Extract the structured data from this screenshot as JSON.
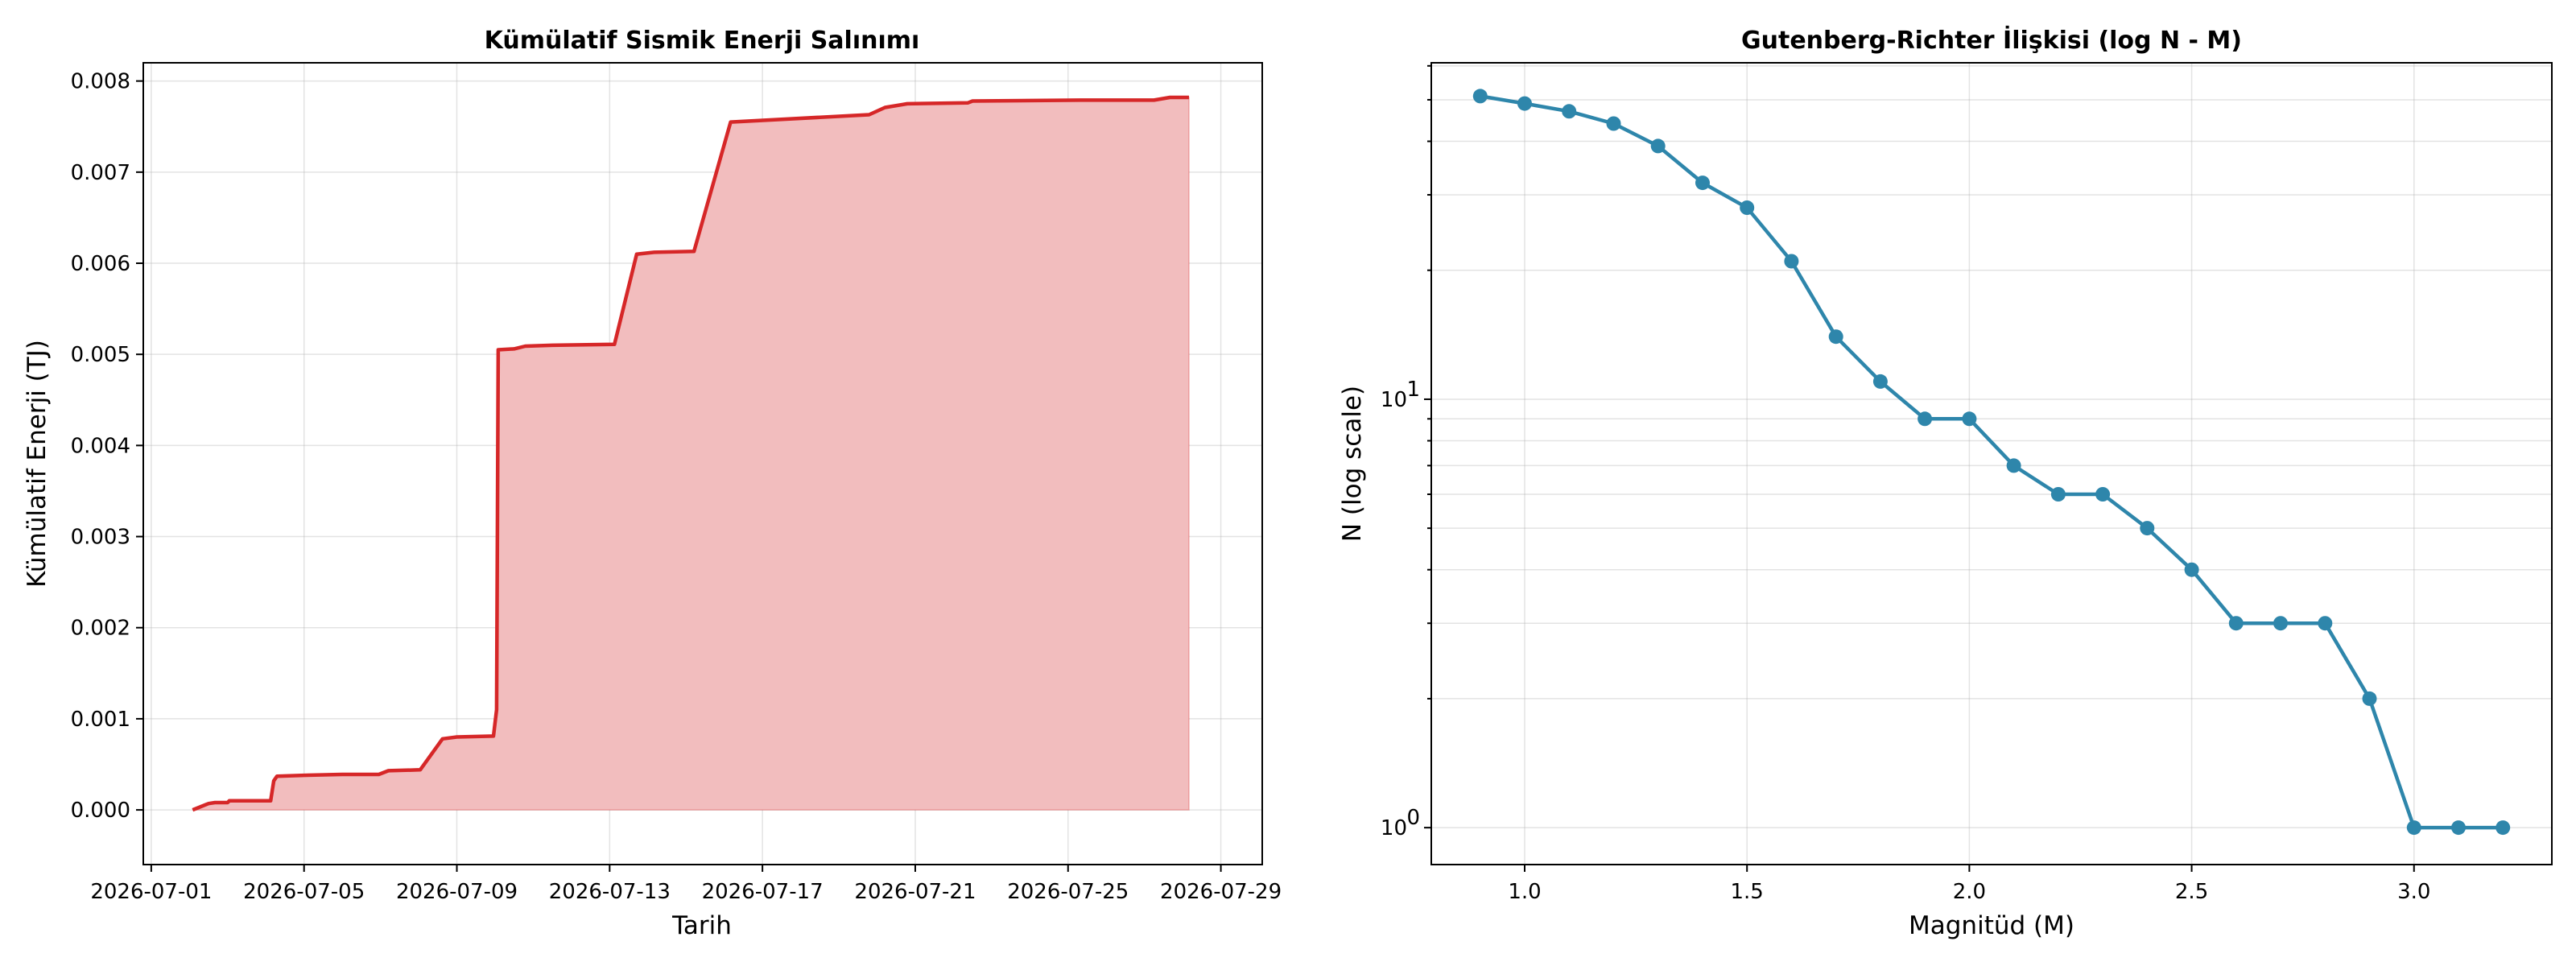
{
  "chart_data": [
    {
      "type": "area",
      "title": "Kümülatif Sismik Enerji Salınımı",
      "xlabel": "Tarih",
      "ylabel": "Kümülatif Enerji (TJ)",
      "x_ticks": [
        "2026-07-01",
        "2026-07-05",
        "2026-07-09",
        "2026-07-13",
        "2026-07-17",
        "2026-07-21",
        "2026-07-25",
        "2026-07-29"
      ],
      "y_ticks": [
        "0.000",
        "0.001",
        "0.002",
        "0.003",
        "0.004",
        "0.005",
        "0.006",
        "0.007",
        "0.008"
      ],
      "xlim": [
        "2026-06-30T19:00",
        "2026-07-30T02:00"
      ],
      "ylim": [
        -0.0006,
        0.0082
      ],
      "grid": true,
      "line_color": "#d62728",
      "fill_color": "#f2bdbe",
      "series": [
        {
          "x": [
            "2026-07-02T02:00",
            "2026-07-02T12:00",
            "2026-07-02T16:00",
            "2026-07-03T00:00",
            "2026-07-03T01:00",
            "2026-07-04T03:00",
            "2026-07-04T05:00",
            "2026-07-04T07:00",
            "2026-07-05T00:00",
            "2026-07-06T00:00",
            "2026-07-06T23:00",
            "2026-07-07T05:00",
            "2026-07-08T01:00",
            "2026-07-08T15:00",
            "2026-07-09T00:00",
            "2026-07-09T23:00",
            "2026-07-10T01:00",
            "2026-07-10T02:00",
            "2026-07-10T12:00",
            "2026-07-10T19:00",
            "2026-07-11T12:00",
            "2026-07-13T03:00",
            "2026-07-13T17:00",
            "2026-07-14T04:00",
            "2026-07-15T05:00",
            "2026-07-16T04:00",
            "2026-07-19T19:00",
            "2026-07-20T05:00",
            "2026-07-20T19:00",
            "2026-07-22T09:00",
            "2026-07-22T12:00",
            "2026-07-25T08:00",
            "2026-07-27T06:00",
            "2026-07-27T16:00",
            "2026-07-28T04:00"
          ],
          "y": [
            0.0,
            7e-05,
            8e-05,
            8e-05,
            0.0001,
            0.0001,
            0.00032,
            0.00037,
            0.00038,
            0.00039,
            0.00039,
            0.00043,
            0.00044,
            0.00078,
            0.0008,
            0.00081,
            0.0011,
            0.00505,
            0.00506,
            0.00509,
            0.0051,
            0.00511,
            0.0061,
            0.00612,
            0.00613,
            0.00755,
            0.00763,
            0.00771,
            0.00775,
            0.00776,
            0.00778,
            0.00779,
            0.00779,
            0.00782,
            0.00782
          ]
        }
      ]
    },
    {
      "type": "line",
      "title": "Gutenberg-Richter İlişkisi (log N - M)",
      "xlabel": "Magnitüd (M)",
      "ylabel": "N (log scale)",
      "yscale": "log",
      "x_ticks": [
        "1.0",
        "1.5",
        "2.0",
        "2.5",
        "3.0"
      ],
      "y_ticks": [
        {
          "base": "10",
          "exp": "1"
        },
        {
          "base": "10",
          "exp": "0"
        }
      ],
      "xlim": [
        0.79,
        3.31
      ],
      "ylim": [
        0.82,
        61
      ],
      "grid": true,
      "line_color": "#2e86ab",
      "series": [
        {
          "x": [
            0.9,
            1.0,
            1.1,
            1.2,
            1.3,
            1.4,
            1.5,
            1.6,
            1.7,
            1.8,
            1.9,
            2.0,
            2.1,
            2.2,
            2.3,
            2.4,
            2.5,
            2.6,
            2.7,
            2.8,
            2.9,
            3.0,
            3.1,
            3.2
          ],
          "y": [
            51,
            49,
            47,
            44,
            39,
            32,
            28,
            21,
            14,
            11,
            9,
            9,
            7,
            6,
            6,
            5,
            4,
            3,
            3,
            3,
            2,
            1,
            1,
            1
          ]
        }
      ]
    }
  ]
}
